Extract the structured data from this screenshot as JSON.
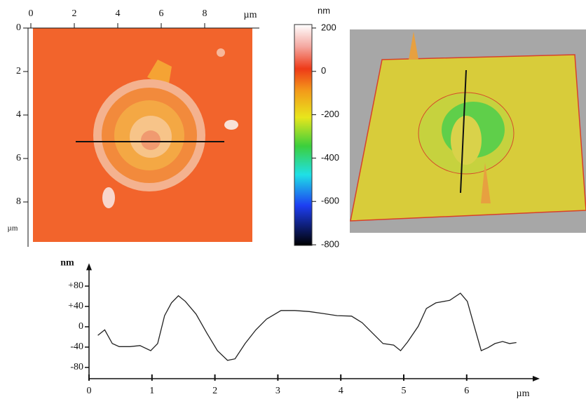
{
  "chart_data": [
    {
      "type": "image",
      "xlim": [
        0,
        10
      ],
      "ylim": [
        0,
        10
      ],
      "xticks": [
        0,
        2,
        4,
        6,
        8
      ],
      "yticks": [
        0,
        2,
        4,
        6,
        8
      ],
      "x_unit": "µm",
      "y_unit": "µm"
    },
    {
      "type": "colorbar",
      "ylim": [
        -803,
        216
      ],
      "yticks": [
        200,
        0,
        -200,
        -400,
        -600,
        -800
      ],
      "unit": "nm"
    },
    {
      "type": "line",
      "xlabel": "µm",
      "ylabel": "nm",
      "color": "#222222",
      "xlim": [
        0,
        7.16
      ],
      "ylim": [
        -102,
        125
      ],
      "xticks": [
        0,
        1,
        2,
        3,
        4,
        5,
        6
      ],
      "yticks": [
        {
          "value": 80,
          "label": "+80"
        },
        {
          "value": 40,
          "label": "+40"
        },
        0,
        -40,
        -80
      ],
      "x": [
        0.14,
        0.25,
        0.37,
        0.48,
        0.65,
        0.81,
        0.98,
        1.09,
        1.2,
        1.31,
        1.42,
        1.53,
        1.7,
        1.87,
        2.04,
        2.2,
        2.32,
        2.48,
        2.65,
        2.82,
        3.05,
        3.27,
        3.5,
        3.72,
        3.94,
        4.17,
        4.34,
        4.5,
        4.67,
        4.84,
        4.95,
        5.06,
        5.23,
        5.36,
        5.51,
        5.73,
        5.9,
        6.01,
        6.12,
        6.23,
        6.34,
        6.45,
        6.57,
        6.68,
        6.79
      ],
      "values": [
        -17,
        -6,
        -33,
        -39,
        -39,
        -37,
        -47,
        -33,
        22,
        47,
        61,
        50,
        25,
        -12,
        -47,
        -66,
        -63,
        -33,
        -6,
        15,
        32,
        32,
        30,
        26,
        22,
        21,
        8,
        -12,
        -33,
        -36,
        -47,
        -30,
        1,
        36,
        47,
        52,
        66,
        50,
        1,
        -47,
        -41,
        -33,
        -29,
        -33,
        -31
      ]
    }
  ]
}
